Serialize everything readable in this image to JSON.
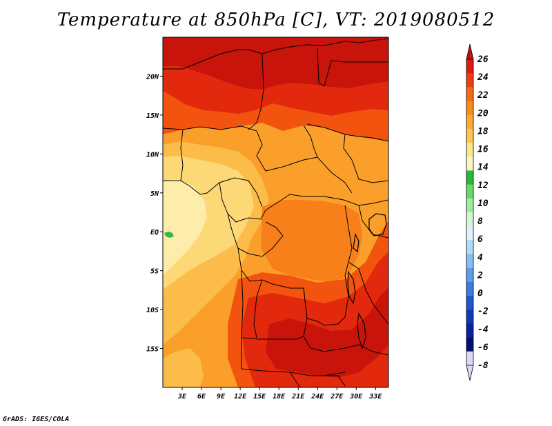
{
  "title": "Temperature at 850hPa [C], VT: 2019080512",
  "credit": "GrADS: IGES/COLA",
  "map": {
    "lon_range": [
      0,
      35
    ],
    "lat_range": [
      -20,
      25
    ],
    "lat_ticks": [
      {
        "value": 20,
        "label": "20N"
      },
      {
        "value": 15,
        "label": "15N"
      },
      {
        "value": 10,
        "label": "10N"
      },
      {
        "value": 5,
        "label": "5N"
      },
      {
        "value": 0,
        "label": "EQ"
      },
      {
        "value": -5,
        "label": "5S"
      },
      {
        "value": -10,
        "label": "10S"
      },
      {
        "value": -15,
        "label": "15S"
      }
    ],
    "lon_ticks": [
      {
        "value": 3,
        "label": "3E"
      },
      {
        "value": 6,
        "label": "6E"
      },
      {
        "value": 9,
        "label": "9E"
      },
      {
        "value": 12,
        "label": "12E"
      },
      {
        "value": 15,
        "label": "15E"
      },
      {
        "value": 18,
        "label": "18E"
      },
      {
        "value": 21,
        "label": "21E"
      },
      {
        "value": 24,
        "label": "24E"
      },
      {
        "value": 27,
        "label": "27E"
      },
      {
        "value": 30,
        "label": "30E"
      },
      {
        "value": 33,
        "label": "33E"
      }
    ]
  },
  "colorbar": {
    "levels": [
      26,
      24,
      22,
      20,
      18,
      16,
      14,
      12,
      10,
      8,
      6,
      4,
      2,
      0,
      -2,
      -4,
      -6,
      -8
    ],
    "labels": [
      "26",
      "24",
      "22",
      "20",
      "18",
      "16",
      "14",
      "12",
      "10",
      "8",
      "6",
      "4",
      "2",
      "0",
      "-2",
      "-4",
      "-6",
      "-8"
    ],
    "colors": [
      "#dd1a0c",
      "#ef3b12",
      "#f86a12",
      "#fa8c1a",
      "#fbab2e",
      "#fcc452",
      "#fde68c",
      "#f9f8c4",
      "#2ab83a",
      "#6cd66c",
      "#9ded9d",
      "#d2f8d2",
      "#dff1fb",
      "#b3dbf7",
      "#85bff0",
      "#5f9de9",
      "#3c7ade",
      "#2155cd",
      "#1036ba",
      "#0a209c",
      "#050e6e",
      "#dadaf6"
    ],
    "top_arrow_color": "#c01010",
    "bottom_arrow_color": "#dadaf6"
  },
  "field_colors": {
    "c26": "#c9140b",
    "c24": "#e2290d",
    "c22": "#f25410",
    "c20": "#f7801a",
    "c18": "#faa02a",
    "c16": "#fcbc4a",
    "c14": "#fdd877",
    "c12": "#fdecaa",
    "green": "#33b84a"
  }
}
